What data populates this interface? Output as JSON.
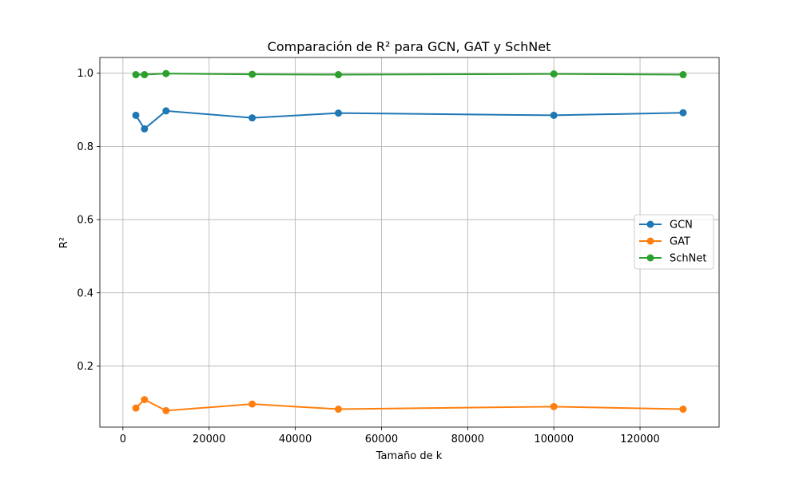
{
  "chart_data": {
    "type": "line",
    "title": "Comparación de R² para GCN, GAT y SchNet",
    "xlabel": "Tamaño de k",
    "ylabel": "R²",
    "xlim": [
      -5350,
      138350
    ],
    "ylim": [
      0.033,
      1.043
    ],
    "xticks": [
      0,
      20000,
      40000,
      60000,
      80000,
      100000,
      120000
    ],
    "yticks": [
      0.2,
      0.4,
      0.6,
      0.8,
      1.0
    ],
    "xtick_labels": [
      "0",
      "20000",
      "40000",
      "60000",
      "80000",
      "100000",
      "120000"
    ],
    "ytick_labels": [
      "0.2",
      "0.4",
      "0.6",
      "0.8",
      "1.0"
    ],
    "grid": true,
    "legend_position": "center-right",
    "x": [
      3000,
      5000,
      10000,
      30000,
      50000,
      100000,
      130000
    ],
    "series": [
      {
        "name": "GCN",
        "color": "#1f77b4",
        "values": [
          0.885,
          0.848,
          0.897,
          0.878,
          0.891,
          0.885,
          0.892
        ]
      },
      {
        "name": "GAT",
        "color": "#ff7f0e",
        "values": [
          0.085,
          0.108,
          0.078,
          0.096,
          0.082,
          0.089,
          0.082
        ]
      },
      {
        "name": "SchNet",
        "color": "#2ca02c",
        "values": [
          0.996,
          0.996,
          0.999,
          0.997,
          0.996,
          0.998,
          0.996
        ]
      }
    ]
  }
}
